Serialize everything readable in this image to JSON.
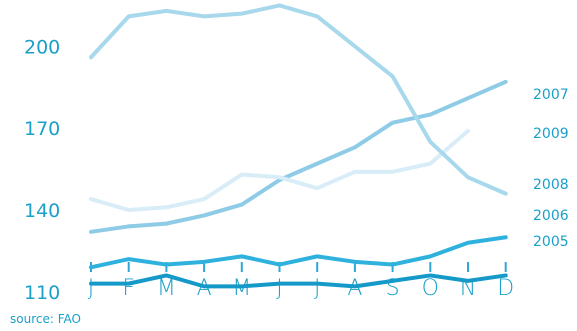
{
  "chart_data": {
    "type": "line",
    "categories": [
      "J",
      "F",
      "M",
      "A",
      "M",
      "J",
      "J",
      "A",
      "S",
      "O",
      "N",
      "D"
    ],
    "y_ticks": [
      110,
      140,
      170,
      200
    ],
    "ylim": [
      107,
      217
    ],
    "grid": false,
    "legend": "right end labels",
    "series": [
      {
        "name": "2007",
        "color": "#8ecbe6",
        "values": [
          132,
          134,
          135,
          138,
          142,
          151,
          157,
          163,
          172,
          175,
          181,
          187
        ]
      },
      {
        "name": "2009",
        "color": "#d8edf7",
        "values": [
          144,
          140,
          141,
          144,
          153,
          152,
          148,
          154,
          154,
          157,
          169,
          null
        ]
      },
      {
        "name": "2008",
        "color": "#a8d8ec",
        "values": [
          196,
          211,
          213,
          211,
          212,
          215,
          211,
          200,
          189,
          165,
          152,
          146
        ]
      },
      {
        "name": "2006",
        "color": "#2fb1dd",
        "values": [
          119,
          122,
          120,
          121,
          123,
          120,
          123,
          121,
          120,
          123,
          128,
          130
        ]
      },
      {
        "name": "2005",
        "color": "#1599c9",
        "values": [
          113,
          113,
          116,
          112,
          112,
          113,
          113,
          112,
          114,
          116,
          114,
          116
        ]
      }
    ]
  },
  "source": "source: FAO"
}
